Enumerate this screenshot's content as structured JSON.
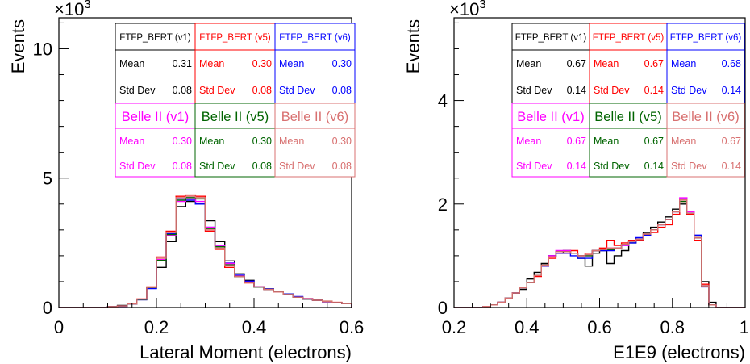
{
  "chart_data": [
    {
      "type": "histogram",
      "xlabel": "Lateral Moment (electrons)",
      "ylabel": "Events",
      "yscale_label": "×10",
      "yscale_exponent": "3",
      "xlim": [
        0,
        0.6
      ],
      "ylim": [
        0,
        11.2
      ],
      "xticks": [
        "0",
        "0.2",
        "0.4",
        "0.6"
      ],
      "yticks": [
        "0",
        "5",
        "10"
      ],
      "x": [
        0.1,
        0.12,
        0.14,
        0.16,
        0.18,
        0.2,
        0.22,
        0.24,
        0.26,
        0.28,
        0.3,
        0.32,
        0.34,
        0.36,
        0.38,
        0.4,
        0.42,
        0.44,
        0.46,
        0.48,
        0.5,
        0.52,
        0.54,
        0.56,
        0.58
      ],
      "series": [
        {
          "name": "FTFP_BERT (v1)",
          "color": "#000000",
          "values": [
            0.04,
            0.08,
            0.15,
            0.3,
            0.75,
            1.55,
            2.55,
            3.9,
            4.1,
            4.0,
            3.35,
            2.55,
            1.8,
            1.3,
            1.05,
            0.8,
            0.72,
            0.62,
            0.52,
            0.4,
            0.32,
            0.28,
            0.22,
            0.18,
            0.15
          ]
        },
        {
          "name": "FTFP_BERT (v5)",
          "color": "#ff0000",
          "values": [
            0.02,
            0.05,
            0.14,
            0.33,
            0.8,
            1.95,
            2.95,
            4.3,
            4.35,
            4.3,
            2.95,
            2.25,
            1.55,
            1.2,
            0.95,
            0.8,
            0.7,
            0.6,
            0.5,
            0.4,
            0.34,
            0.28,
            0.24,
            0.2,
            0.16
          ]
        },
        {
          "name": "FTFP_BERT (v6)",
          "color": "#0000ff",
          "values": [
            0.03,
            0.05,
            0.13,
            0.3,
            0.73,
            1.8,
            2.85,
            4.2,
            4.15,
            4.0,
            3.1,
            2.4,
            1.72,
            1.25,
            1.02,
            0.8,
            0.72,
            0.62,
            0.52,
            0.42,
            0.33,
            0.28,
            0.22,
            0.18,
            0.15
          ]
        },
        {
          "name": "Belle II (v1)",
          "color": "#ff00ff",
          "values": [
            0.03,
            0.06,
            0.14,
            0.32,
            0.78,
            1.85,
            2.8,
            4.1,
            4.2,
            4.1,
            3.1,
            2.4,
            1.7,
            1.22,
            0.98,
            0.8,
            0.7,
            0.6,
            0.5,
            0.4,
            0.34,
            0.28,
            0.22,
            0.19,
            0.15
          ]
        },
        {
          "name": "Belle II (v5)",
          "color": "#006400",
          "values": [
            0.03,
            0.06,
            0.14,
            0.31,
            0.77,
            1.82,
            2.82,
            4.15,
            4.25,
            4.2,
            3.05,
            2.35,
            1.65,
            1.2,
            0.97,
            0.79,
            0.7,
            0.6,
            0.5,
            0.4,
            0.33,
            0.28,
            0.23,
            0.19,
            0.15
          ]
        },
        {
          "name": "Belle II (v6)",
          "color": "#d87070",
          "values": [
            0.03,
            0.06,
            0.14,
            0.32,
            0.78,
            1.9,
            2.9,
            4.25,
            4.3,
            4.25,
            3.0,
            2.3,
            1.62,
            1.2,
            0.96,
            0.8,
            0.7,
            0.6,
            0.5,
            0.4,
            0.33,
            0.28,
            0.23,
            0.19,
            0.15
          ]
        }
      ],
      "stats": {
        "header_ftfp": [
          "FTFP_BERT (v1)",
          "FTFP_BERT (v5)",
          "FTFP_BERT (v6)"
        ],
        "header_belle": [
          "Belle II (v1)",
          "Belle II (v5)",
          "Belle II (v6)"
        ],
        "mean_label": "Mean",
        "std_label": "Std Dev",
        "ftfp_mean": [
          "0.31",
          "0.30",
          "0.30"
        ],
        "ftfp_std": [
          "0.08",
          "0.08",
          "0.08"
        ],
        "belle_mean": [
          "0.30",
          "0.30",
          "0.30"
        ],
        "belle_std": [
          "0.08",
          "0.08",
          "0.08"
        ]
      }
    },
    {
      "type": "histogram",
      "xlabel": "E1E9 (electrons)",
      "ylabel": "Events",
      "yscale_label": "×10",
      "yscale_exponent": "3",
      "xlim": [
        0.2,
        1.0
      ],
      "ylim": [
        0,
        5.6
      ],
      "xticks": [
        "0.2",
        "0.4",
        "0.6",
        "0.8",
        "1"
      ],
      "yticks": [
        "0",
        "2",
        "4"
      ],
      "x": [
        0.28,
        0.3,
        0.32,
        0.34,
        0.36,
        0.38,
        0.4,
        0.42,
        0.44,
        0.46,
        0.48,
        0.5,
        0.52,
        0.54,
        0.56,
        0.58,
        0.6,
        0.62,
        0.64,
        0.66,
        0.68,
        0.7,
        0.72,
        0.74,
        0.76,
        0.78,
        0.8,
        0.82,
        0.84,
        0.86,
        0.88,
        0.9
      ],
      "series": [
        {
          "name": "FTFP_BERT (v1)",
          "color": "#000000",
          "values": [
            0.02,
            0.05,
            0.1,
            0.18,
            0.28,
            0.35,
            0.55,
            0.68,
            0.85,
            1.0,
            1.05,
            1.1,
            1.05,
            0.95,
            0.8,
            1.05,
            1.1,
            0.85,
            1.0,
            1.1,
            1.25,
            1.3,
            1.45,
            1.55,
            1.65,
            1.75,
            1.9,
            2.0,
            1.8,
            1.35,
            0.5,
            0.1
          ]
        },
        {
          "name": "FTFP_BERT (v5)",
          "color": "#ff0000",
          "values": [
            0.02,
            0.05,
            0.1,
            0.18,
            0.28,
            0.38,
            0.48,
            0.6,
            0.8,
            0.95,
            1.05,
            1.05,
            1.1,
            1.0,
            1.05,
            1.1,
            1.15,
            1.3,
            1.2,
            1.25,
            1.3,
            1.3,
            1.4,
            1.45,
            1.55,
            1.6,
            1.8,
            2.05,
            1.8,
            1.3,
            0.45,
            0.05
          ]
        },
        {
          "name": "FTFP_BERT (v6)",
          "color": "#0000ff",
          "values": [
            0.02,
            0.05,
            0.1,
            0.18,
            0.28,
            0.38,
            0.48,
            0.62,
            0.8,
            1.0,
            1.05,
            1.05,
            1.0,
            0.95,
            0.95,
            1.1,
            1.1,
            1.1,
            1.15,
            1.2,
            1.25,
            1.35,
            1.4,
            1.5,
            1.6,
            1.7,
            1.85,
            2.1,
            1.85,
            1.4,
            0.4,
            0.05
          ]
        },
        {
          "name": "Belle II (v1)",
          "color": "#ff00ff",
          "values": [
            0.02,
            0.05,
            0.1,
            0.18,
            0.28,
            0.38,
            0.48,
            0.62,
            0.82,
            1.0,
            1.1,
            1.1,
            1.05,
            1.0,
            1.0,
            1.1,
            1.12,
            1.15,
            1.15,
            1.2,
            1.28,
            1.32,
            1.42,
            1.5,
            1.6,
            1.7,
            1.85,
            2.12,
            1.85,
            1.35,
            0.42,
            0.05
          ]
        },
        {
          "name": "Belle II (v5)",
          "color": "#006400",
          "values": [
            0.02,
            0.05,
            0.1,
            0.18,
            0.28,
            0.38,
            0.48,
            0.62,
            0.82,
            0.98,
            1.08,
            1.08,
            1.05,
            1.0,
            1.0,
            1.1,
            1.12,
            1.12,
            1.15,
            1.22,
            1.28,
            1.32,
            1.42,
            1.5,
            1.6,
            1.7,
            1.85,
            2.05,
            1.82,
            1.35,
            0.42,
            0.05
          ]
        },
        {
          "name": "Belle II (v6)",
          "color": "#d87070",
          "values": [
            0.02,
            0.05,
            0.1,
            0.18,
            0.28,
            0.38,
            0.48,
            0.62,
            0.82,
            0.98,
            1.08,
            1.08,
            1.05,
            1.0,
            1.02,
            1.1,
            1.12,
            1.15,
            1.15,
            1.22,
            1.28,
            1.32,
            1.42,
            1.5,
            1.6,
            1.7,
            1.85,
            2.08,
            1.82,
            1.35,
            0.42,
            0.05
          ]
        }
      ],
      "stats": {
        "header_ftfp": [
          "FTFP_BERT (v1)",
          "FTFP_BERT (v5)",
          "FTFP_BERT (v6)"
        ],
        "header_belle": [
          "Belle II (v1)",
          "Belle II (v5)",
          "Belle II (v6)"
        ],
        "mean_label": "Mean",
        "std_label": "Std Dev",
        "ftfp_mean": [
          "0.67",
          "0.67",
          "0.68"
        ],
        "ftfp_std": [
          "0.14",
          "0.14",
          "0.14"
        ],
        "belle_mean": [
          "0.67",
          "0.67",
          "0.67"
        ],
        "belle_std": [
          "0.14",
          "0.14",
          "0.14"
        ]
      }
    }
  ]
}
